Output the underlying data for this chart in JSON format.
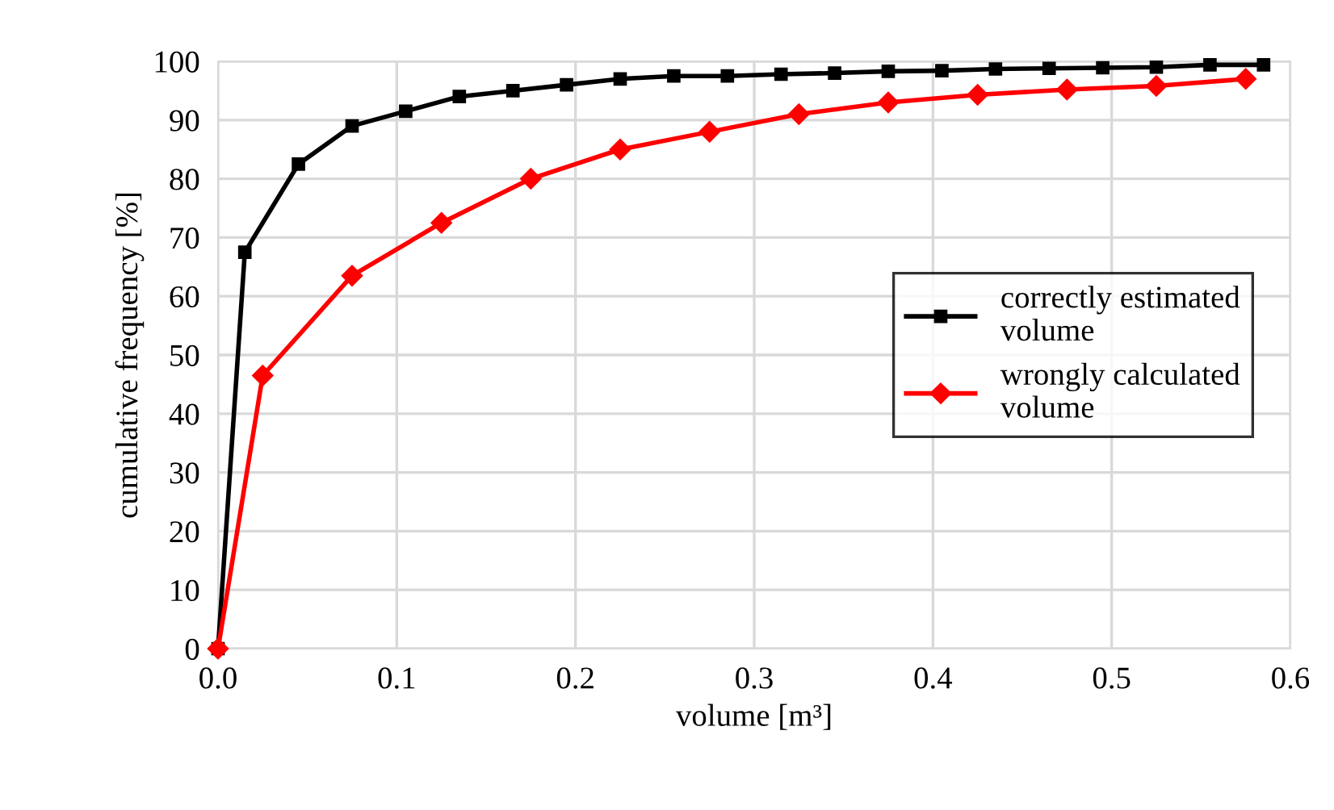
{
  "chart_data": {
    "type": "line",
    "xlabel": "volume [m³]",
    "ylabel": "cumulative frequency [%]",
    "xlim": [
      0,
      0.6
    ],
    "xticks": [
      {
        "value": 0,
        "label": "0.0"
      },
      0.1,
      0.2,
      0.3,
      0.4,
      0.5,
      0.6
    ],
    "ylim": [
      0,
      100
    ],
    "yticks": [
      0,
      10,
      20,
      30,
      40,
      50,
      60,
      70,
      80,
      90,
      100
    ],
    "grid": true,
    "legend": "right",
    "line_style": "solid",
    "series": [
      {
        "name": "correctly estimated\nvolume",
        "color": "#000000",
        "marker": "square",
        "x": [
          0,
          0.015,
          0.045,
          0.075,
          0.105,
          0.135,
          0.165,
          0.195,
          0.225,
          0.255,
          0.285,
          0.315,
          0.345,
          0.375,
          0.405,
          0.435,
          0.465,
          0.495,
          0.525,
          0.555,
          0.585
        ],
        "values": [
          0,
          67.5,
          82.5,
          89,
          91.5,
          94,
          95,
          96,
          97,
          97.5,
          97.5,
          97.8,
          98,
          98.3,
          98.4,
          98.7,
          98.8,
          98.9,
          99,
          99.4,
          99.4
        ]
      },
      {
        "name": "wrongly calculated\nvolume",
        "color": "#ff0000",
        "marker": "diamond",
        "x": [
          0,
          0.025,
          0.075,
          0.125,
          0.175,
          0.225,
          0.275,
          0.325,
          0.375,
          0.425,
          0.475,
          0.525,
          0.575
        ],
        "values": [
          0,
          46.5,
          63.5,
          72.5,
          80,
          85,
          88,
          91,
          93,
          94.3,
          95.2,
          95.8,
          97
        ]
      }
    ]
  }
}
